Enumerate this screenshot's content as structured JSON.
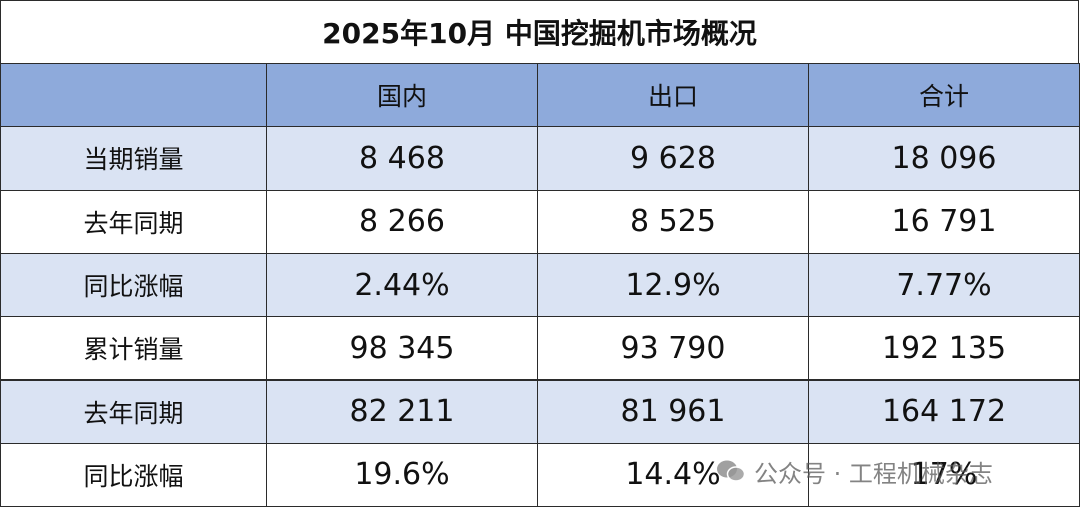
{
  "title": "2025年10月 中国挖掘机市场概况",
  "table": {
    "header": [
      "",
      "国内",
      "出口",
      "合计"
    ],
    "rows": [
      [
        "当期销量",
        "8 468",
        "9 628",
        "18 096"
      ],
      [
        "去年同期",
        "8 266",
        "8 525",
        "16 791"
      ],
      [
        "同比涨幅",
        "2.44%",
        "12.9%",
        "7.77%"
      ],
      [
        "累计销量",
        "98 345",
        "93 790",
        "192 135"
      ],
      [
        "去年同期",
        "82 211",
        "81 961",
        "164 172"
      ],
      [
        "同比涨幅",
        "19.6%",
        "14.4%",
        "17%"
      ]
    ]
  },
  "watermark": "公众号 · 工程机械杂志"
}
